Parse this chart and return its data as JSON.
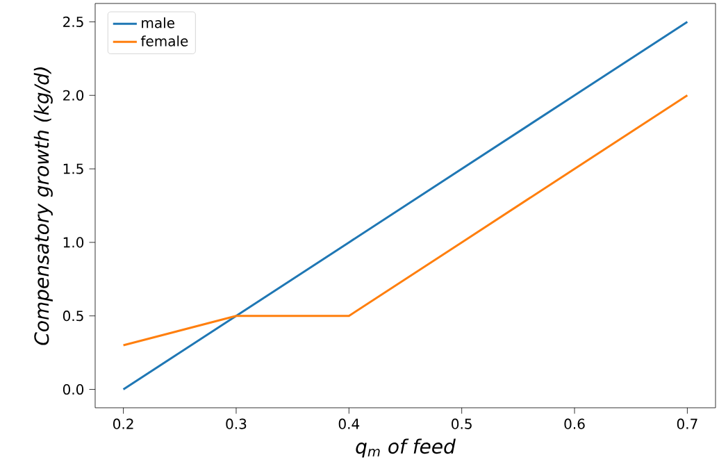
{
  "chart_data": {
    "type": "line",
    "xlabel": "q$_{m}$ of feed",
    "ylabel": "Compensatory growth (kg/d)",
    "x": [
      0.2,
      0.3,
      0.4,
      0.5,
      0.6,
      0.7
    ],
    "series": [
      {
        "name": "male",
        "color": "#1f77b4",
        "values": [
          0,
          0.5,
          1.0,
          1.5,
          2.0,
          2.5
        ]
      },
      {
        "name": "female",
        "color": "#ff7f0e",
        "values": [
          0.3,
          0.5,
          0.5,
          1.0,
          1.5,
          2.0
        ]
      }
    ],
    "xlim": [
      0.175,
      0.725
    ],
    "ylim": [
      -0.125,
      2.625
    ],
    "xticks": [
      0.2,
      0.3,
      0.4,
      0.5,
      0.6,
      0.7
    ],
    "yticks": [
      {
        "value": 0,
        "label": "0.0"
      },
      0.5,
      {
        "value": 1,
        "label": "1.0"
      },
      1.5,
      {
        "value": 2,
        "label": "2.0"
      },
      2.5
    ],
    "legend": "top left",
    "grid": false,
    "marker": "none",
    "line_style": "solid"
  }
}
